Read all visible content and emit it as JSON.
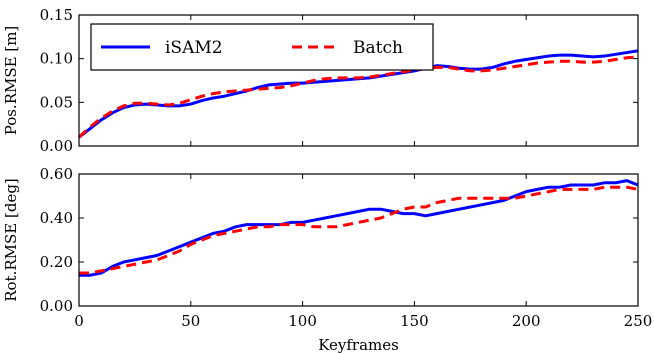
{
  "chart_data": [
    {
      "type": "line",
      "ylabel": "Pos.RMSE [m]",
      "xlim": [
        0,
        250
      ],
      "ylim": [
        0,
        0.15
      ],
      "yticks": [
        0.0,
        0.05,
        0.1,
        0.15
      ],
      "ytick_labels": [
        "0.00",
        "0.05",
        "0.10",
        "0.15"
      ],
      "legend_position": "upper-left",
      "series": [
        {
          "name": "iSAM2",
          "color": "#0000ff",
          "style": "solid",
          "x": [
            0,
            5,
            10,
            15,
            20,
            25,
            30,
            35,
            40,
            45,
            50,
            55,
            60,
            65,
            70,
            75,
            80,
            85,
            90,
            95,
            100,
            105,
            110,
            115,
            120,
            125,
            130,
            135,
            140,
            145,
            150,
            155,
            160,
            165,
            170,
            175,
            180,
            185,
            190,
            195,
            200,
            205,
            210,
            215,
            220,
            225,
            230,
            235,
            240,
            245,
            250
          ],
          "y": [
            0.01,
            0.02,
            0.03,
            0.038,
            0.044,
            0.047,
            0.048,
            0.047,
            0.046,
            0.046,
            0.048,
            0.052,
            0.055,
            0.057,
            0.06,
            0.063,
            0.067,
            0.07,
            0.071,
            0.072,
            0.072,
            0.073,
            0.074,
            0.075,
            0.076,
            0.077,
            0.078,
            0.08,
            0.082,
            0.084,
            0.086,
            0.089,
            0.092,
            0.091,
            0.089,
            0.088,
            0.088,
            0.09,
            0.094,
            0.097,
            0.099,
            0.101,
            0.103,
            0.104,
            0.104,
            0.103,
            0.102,
            0.103,
            0.105,
            0.107,
            0.109
          ]
        },
        {
          "name": "Batch",
          "color": "#ff0000",
          "style": "dashed",
          "x": [
            0,
            5,
            10,
            15,
            20,
            25,
            30,
            35,
            40,
            45,
            50,
            55,
            60,
            65,
            70,
            75,
            80,
            85,
            90,
            95,
            100,
            105,
            110,
            115,
            120,
            125,
            130,
            135,
            140,
            145,
            150,
            155,
            160,
            165,
            170,
            175,
            180,
            185,
            190,
            195,
            200,
            205,
            210,
            215,
            220,
            225,
            230,
            235,
            240,
            245,
            250
          ],
          "y": [
            0.01,
            0.022,
            0.032,
            0.04,
            0.046,
            0.049,
            0.049,
            0.048,
            0.047,
            0.049,
            0.053,
            0.057,
            0.06,
            0.062,
            0.063,
            0.064,
            0.065,
            0.066,
            0.067,
            0.069,
            0.072,
            0.075,
            0.077,
            0.078,
            0.078,
            0.078,
            0.079,
            0.081,
            0.083,
            0.085,
            0.087,
            0.089,
            0.09,
            0.09,
            0.088,
            0.086,
            0.086,
            0.087,
            0.089,
            0.091,
            0.093,
            0.095,
            0.096,
            0.097,
            0.097,
            0.096,
            0.096,
            0.097,
            0.099,
            0.101,
            0.102
          ]
        }
      ]
    },
    {
      "type": "line",
      "xlabel": "Keyframes",
      "ylabel": "Rot.RMSE [deg]",
      "xlim": [
        0,
        250
      ],
      "ylim": [
        0,
        0.6
      ],
      "xticks": [
        0,
        50,
        100,
        150,
        200,
        250
      ],
      "xtick_labels": [
        "0",
        "50",
        "100",
        "150",
        "200",
        "250"
      ],
      "yticks": [
        0.0,
        0.2,
        0.4,
        0.6
      ],
      "ytick_labels": [
        "0.00",
        "0.20",
        "0.40",
        "0.60"
      ],
      "series": [
        {
          "name": "iSAM2",
          "color": "#0000ff",
          "style": "solid",
          "x": [
            0,
            5,
            10,
            15,
            20,
            25,
            30,
            35,
            40,
            45,
            50,
            55,
            60,
            65,
            70,
            75,
            80,
            85,
            90,
            95,
            100,
            105,
            110,
            115,
            120,
            125,
            130,
            135,
            140,
            145,
            150,
            155,
            160,
            165,
            170,
            175,
            180,
            185,
            190,
            195,
            200,
            205,
            210,
            215,
            220,
            225,
            230,
            235,
            240,
            245,
            250
          ],
          "y": [
            0.14,
            0.14,
            0.15,
            0.18,
            0.2,
            0.21,
            0.22,
            0.23,
            0.25,
            0.27,
            0.29,
            0.31,
            0.33,
            0.34,
            0.36,
            0.37,
            0.37,
            0.37,
            0.37,
            0.38,
            0.38,
            0.39,
            0.4,
            0.41,
            0.42,
            0.43,
            0.44,
            0.44,
            0.43,
            0.42,
            0.42,
            0.41,
            0.42,
            0.43,
            0.44,
            0.45,
            0.46,
            0.47,
            0.48,
            0.5,
            0.52,
            0.53,
            0.54,
            0.54,
            0.55,
            0.55,
            0.55,
            0.56,
            0.56,
            0.57,
            0.55
          ]
        },
        {
          "name": "Batch",
          "color": "#ff0000",
          "style": "dashed",
          "x": [
            0,
            5,
            10,
            15,
            20,
            25,
            30,
            35,
            40,
            45,
            50,
            55,
            60,
            65,
            70,
            75,
            80,
            85,
            90,
            95,
            100,
            105,
            110,
            115,
            120,
            125,
            130,
            135,
            140,
            145,
            150,
            155,
            160,
            165,
            170,
            175,
            180,
            185,
            190,
            195,
            200,
            205,
            210,
            215,
            220,
            225,
            230,
            235,
            240,
            245,
            250
          ],
          "y": [
            0.15,
            0.15,
            0.16,
            0.17,
            0.18,
            0.19,
            0.2,
            0.21,
            0.23,
            0.25,
            0.28,
            0.3,
            0.32,
            0.33,
            0.34,
            0.35,
            0.36,
            0.36,
            0.37,
            0.37,
            0.37,
            0.36,
            0.36,
            0.36,
            0.37,
            0.38,
            0.39,
            0.4,
            0.42,
            0.44,
            0.45,
            0.45,
            0.47,
            0.48,
            0.49,
            0.49,
            0.49,
            0.49,
            0.49,
            0.49,
            0.5,
            0.51,
            0.52,
            0.53,
            0.53,
            0.53,
            0.53,
            0.54,
            0.54,
            0.54,
            0.53
          ]
        }
      ]
    }
  ]
}
